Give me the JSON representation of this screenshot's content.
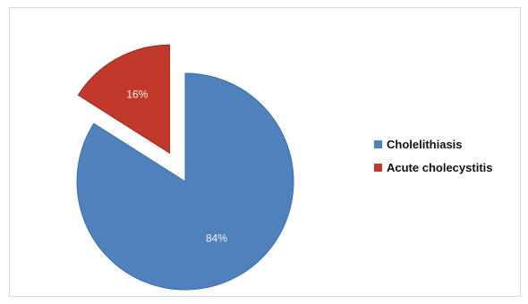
{
  "chart_data": {
    "type": "pie",
    "exploded": true,
    "slices": [
      {
        "name": "Cholelithiasis",
        "value": 84,
        "label": "84%",
        "color": "#4f81bd"
      },
      {
        "name": "Acute cholecystitis",
        "value": 16,
        "label": "16%",
        "color": "#c0392b"
      }
    ],
    "legend_position": "right"
  }
}
